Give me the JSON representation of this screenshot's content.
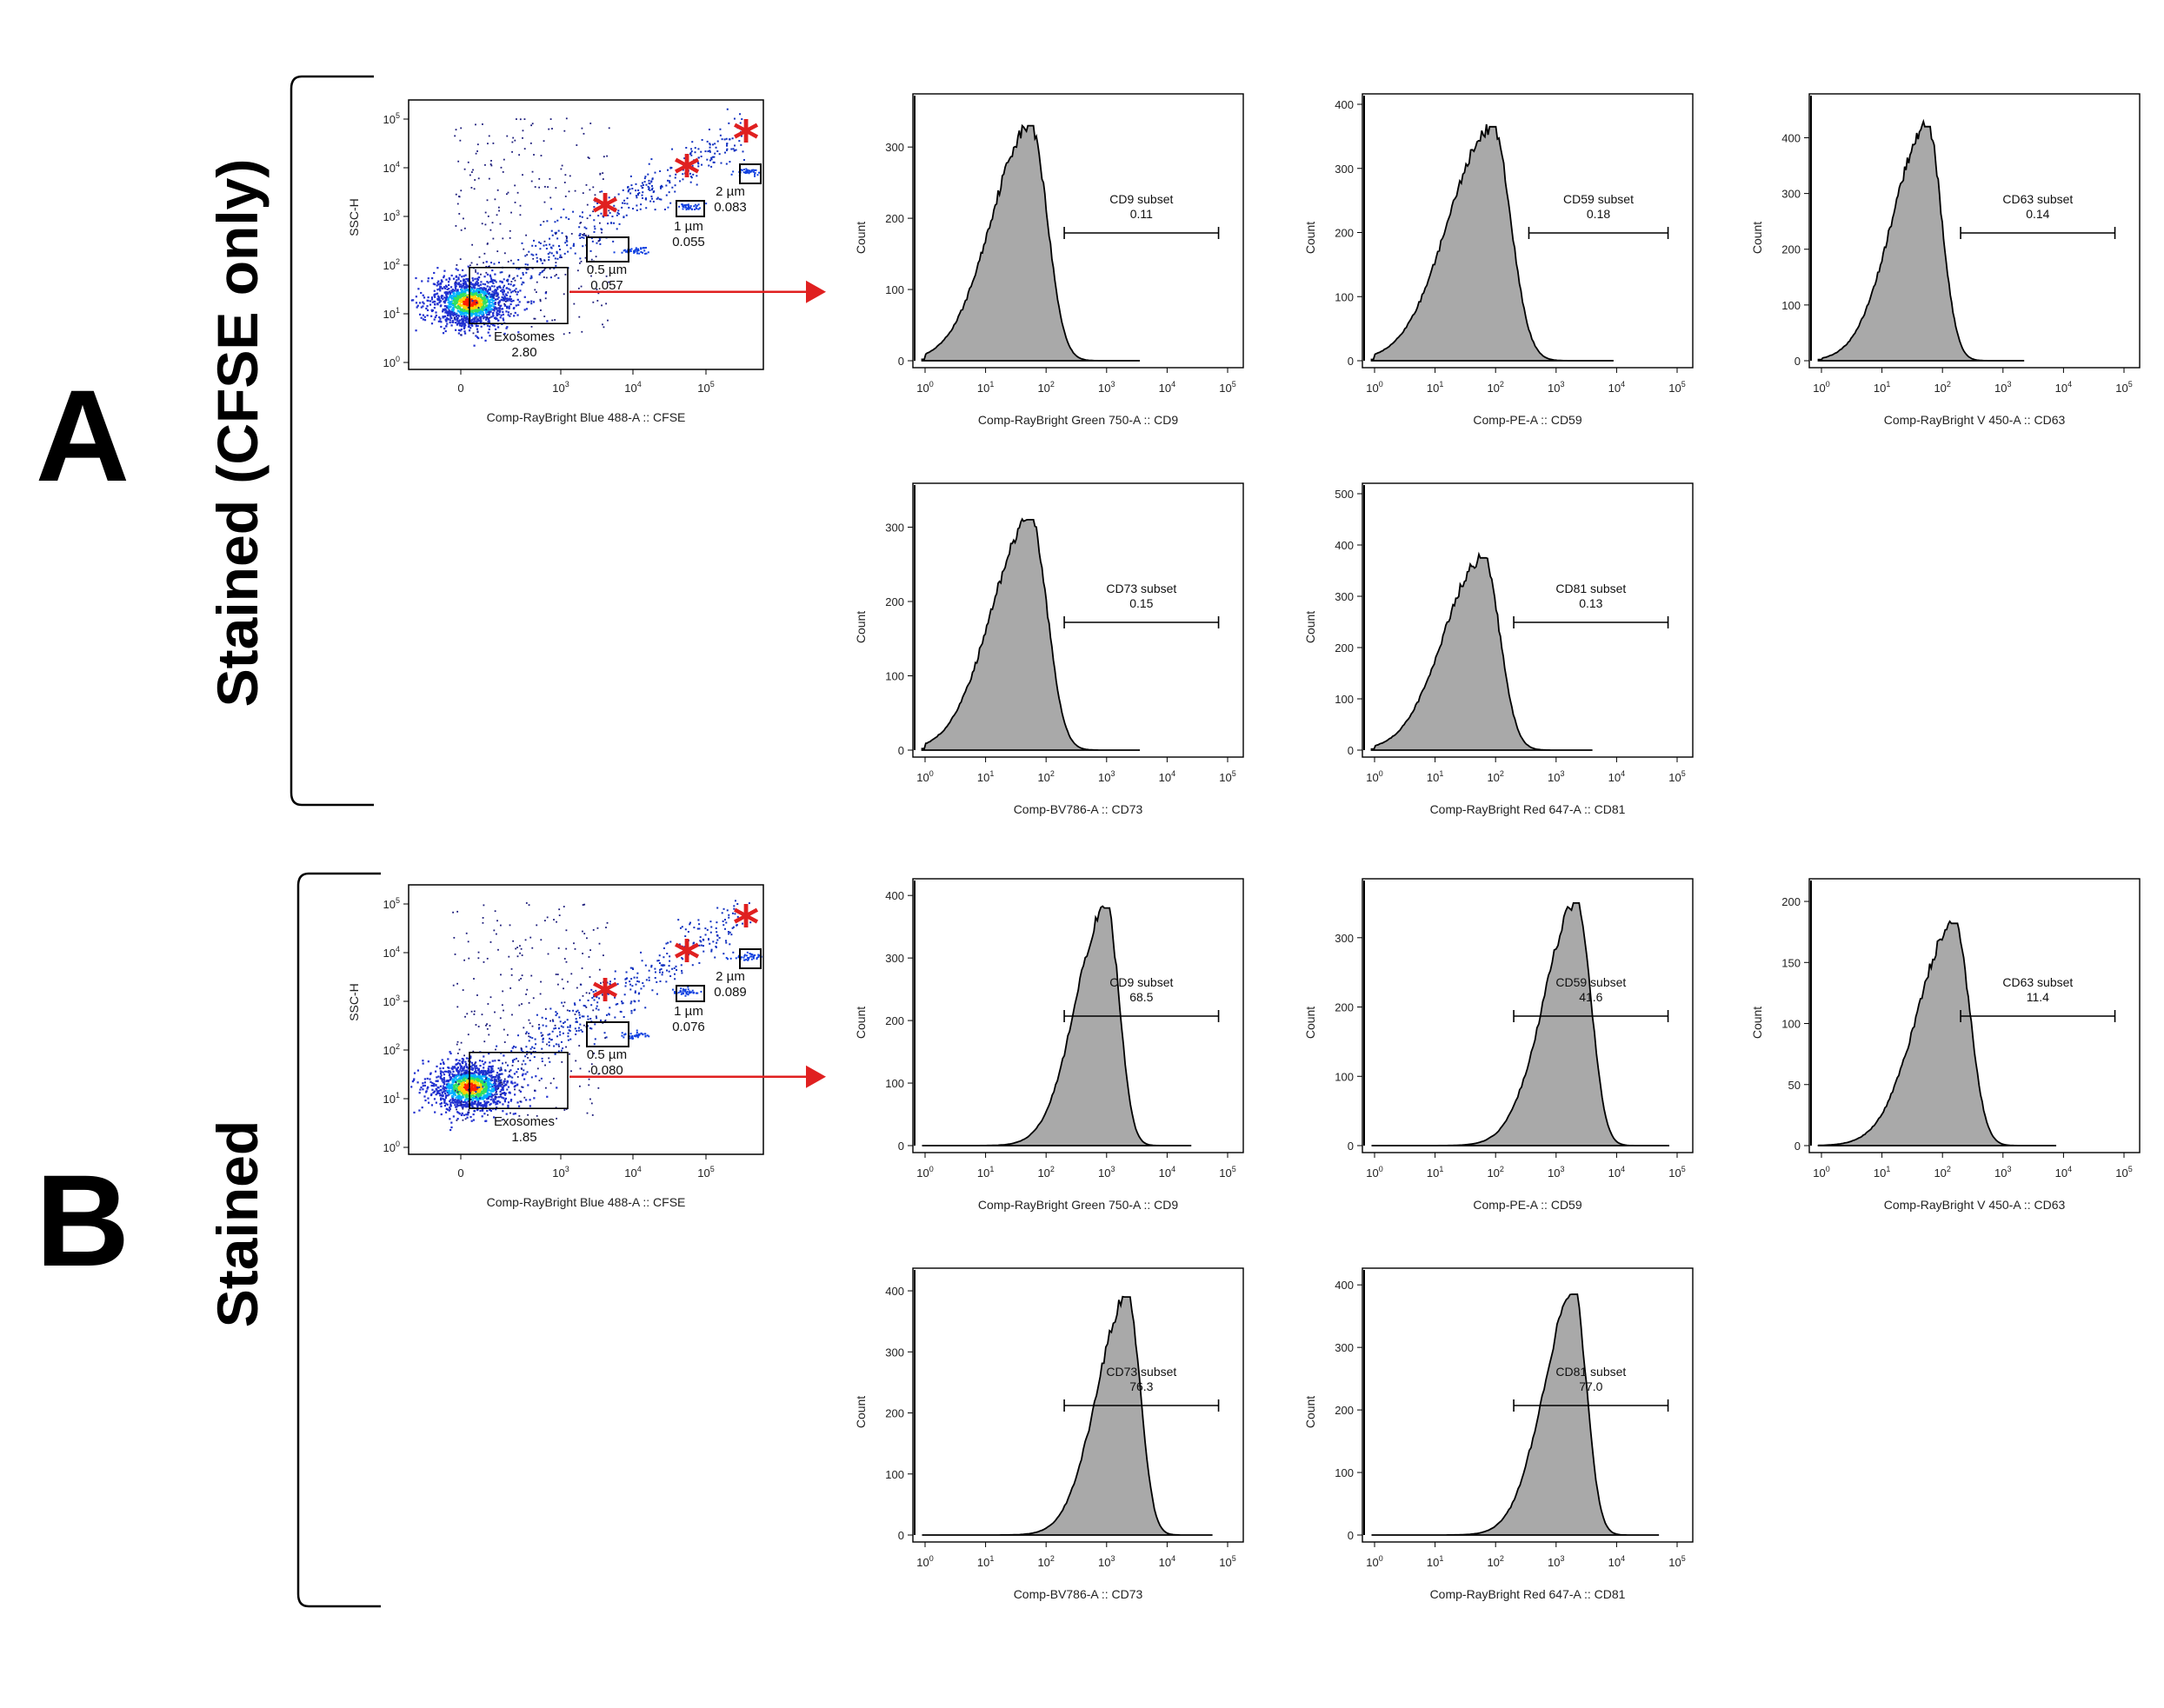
{
  "panels": [
    {
      "letter": "A",
      "row_label": "Stained (CFSE only)",
      "scatter": {
        "xlabel": "Comp-RayBright Blue 488-A :: CFSE",
        "ylabel": "SSC-H",
        "gates": [
          {
            "name": "Exosomes",
            "value": "2.80"
          },
          {
            "name": "0.5 µm",
            "value": "0.057"
          },
          {
            "name": "1 µm",
            "value": "0.055"
          },
          {
            "name": "2 µm",
            "value": "0.083"
          }
        ]
      },
      "histograms": [
        {
          "marker": "CD9",
          "xlabel": "Comp-RayBright Green 750-A :: CD9",
          "ylabel": "Count",
          "gate_name": "CD9 subset",
          "gate_value": "0.11",
          "ymax": 330,
          "yticks": [
            0,
            100,
            200,
            300
          ],
          "ylim": [
            0,
            360
          ],
          "peak_log": 1.75,
          "sigma": 0.45
        },
        {
          "marker": "CD59",
          "xlabel": "Comp-PE-A :: CD59",
          "ylabel": "Count",
          "gate_name": "CD59 subset",
          "gate_value": "0.18",
          "ymax": 365,
          "yticks": [
            0,
            100,
            200,
            300,
            400
          ],
          "ylim": [
            0,
            400
          ],
          "peak_log": 1.95,
          "sigma": 0.5
        },
        {
          "marker": "CD63",
          "xlabel": "Comp-RayBright V 450-A :: CD63",
          "ylabel": "Count",
          "gate_name": "CD63 subset",
          "gate_value": "0.14",
          "ymax": 420,
          "yticks": [
            0,
            100,
            200,
            300,
            400
          ],
          "ylim": [
            0,
            460
          ],
          "peak_log": 1.75,
          "sigma": 0.4
        },
        {
          "marker": "CD73",
          "xlabel": "Comp-BV786-A :: CD73",
          "ylabel": "Count",
          "gate_name": "CD73 subset",
          "gate_value": "0.15",
          "ymax": 310,
          "yticks": [
            0,
            100,
            200,
            300
          ],
          "ylim": [
            0,
            345
          ],
          "peak_log": 1.75,
          "sigma": 0.45
        },
        {
          "marker": "CD81",
          "xlabel": "Comp-RayBright Red 647-A :: CD81",
          "ylabel": "Count",
          "gate_name": "CD81 subset",
          "gate_value": "0.13",
          "ymax": 375,
          "yticks": [
            0,
            100,
            200,
            300,
            400,
            500
          ],
          "ylim": [
            0,
            500
          ],
          "peak_log": 1.8,
          "sigma": 0.45
        }
      ]
    },
    {
      "letter": "B",
      "row_label": "Stained",
      "scatter": {
        "xlabel": "Comp-RayBright Blue 488-A :: CFSE",
        "ylabel": "SSC-H",
        "gates": [
          {
            "name": "Exosomes",
            "value": "1.85"
          },
          {
            "name": "0.5 µm",
            "value": "0.080"
          },
          {
            "name": "1 µm",
            "value": "0.076"
          },
          {
            "name": "2 µm",
            "value": "0.089"
          }
        ]
      },
      "histograms": [
        {
          "marker": "CD9",
          "xlabel": "Comp-RayBright Green 750-A :: CD9",
          "ylabel": "Count",
          "gate_name": "CD9 subset",
          "gate_value": "68.5",
          "ymax": 380,
          "yticks": [
            0,
            100,
            200,
            300,
            400
          ],
          "ylim": [
            0,
            410
          ],
          "peak_log": 3.0,
          "sigma": 0.35
        },
        {
          "marker": "CD59",
          "xlabel": "Comp-PE-A :: CD59",
          "ylabel": "Count",
          "gate_name": "CD59 subset",
          "gate_value": "41.6",
          "ymax": 350,
          "yticks": [
            0,
            100,
            200,
            300
          ],
          "ylim": [
            0,
            370
          ],
          "peak_log": 3.35,
          "sigma": 0.38
        },
        {
          "marker": "CD63",
          "xlabel": "Comp-RayBright V 450-A :: CD63",
          "ylabel": "Count",
          "gate_name": "CD63 subset",
          "gate_value": "11.4",
          "ymax": 182,
          "yticks": [
            0,
            50,
            100,
            150,
            200
          ],
          "ylim": [
            0,
            210
          ],
          "peak_log": 2.2,
          "sigma": 0.42
        },
        {
          "marker": "CD73",
          "xlabel": "Comp-BV786-A :: CD73",
          "ylabel": "Count",
          "gate_name": "CD73 subset",
          "gate_value": "76.3",
          "ymax": 390,
          "yticks": [
            0,
            100,
            200,
            300,
            400
          ],
          "ylim": [
            0,
            420
          ],
          "peak_log": 3.35,
          "sigma": 0.35
        },
        {
          "marker": "CD81",
          "xlabel": "Comp-RayBright Red 647-A :: CD81",
          "ylabel": "Count",
          "gate_name": "CD81 subset",
          "gate_value": "77.0",
          "ymax": 385,
          "yticks": [
            0,
            100,
            200,
            300,
            400
          ],
          "ylim": [
            0,
            410
          ],
          "peak_log": 3.3,
          "sigma": 0.35
        }
      ]
    }
  ],
  "chart_data": {
    "type": "area",
    "x_scale": "log",
    "xlim": [
      1,
      100000
    ],
    "x_ticks": [
      "10^0",
      "10^1",
      "10^2",
      "10^3",
      "10^4",
      "10^5"
    ],
    "scatter_y_ticks": [
      "10^0",
      "10^1",
      "10^2",
      "10^3",
      "10^4",
      "10^5"
    ],
    "scatter_x_ticks": [
      "0",
      "10^3",
      "10^4",
      "10^5"
    ],
    "fill_color": "#a9a9a9",
    "annotation_color": "#e02020"
  }
}
